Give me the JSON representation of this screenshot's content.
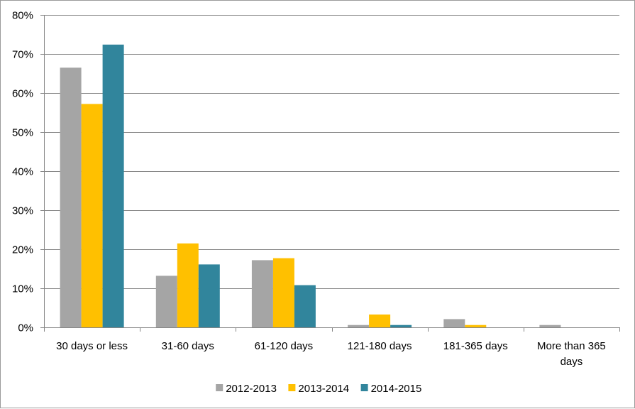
{
  "chart_data": {
    "type": "bar",
    "title": "",
    "xlabel": "",
    "ylabel": "",
    "categories": [
      [
        "30 days or less"
      ],
      [
        "31-60 days"
      ],
      [
        "61-120 days"
      ],
      [
        "121-180 days"
      ],
      [
        "181-365 days"
      ],
      [
        "More than 365",
        "days"
      ]
    ],
    "series": [
      {
        "name": "2012-2013",
        "color": "#a5a5a5",
        "values": [
          66.5,
          13.2,
          17.2,
          0.6,
          2.1,
          0.6
        ]
      },
      {
        "name": "2013-2014",
        "color": "#ffc000",
        "values": [
          57.2,
          21.5,
          17.7,
          3.3,
          0.6,
          0.0
        ]
      },
      {
        "name": "2014-2015",
        "color": "#31859c",
        "values": [
          72.4,
          16.1,
          10.8,
          0.6,
          0.0,
          0.0
        ]
      }
    ],
    "ylim": [
      0,
      80
    ],
    "y_ticks": [
      0,
      10,
      20,
      30,
      40,
      50,
      60,
      70,
      80
    ],
    "y_tick_format": "percent",
    "grid": true,
    "legend_position": "bottom"
  }
}
